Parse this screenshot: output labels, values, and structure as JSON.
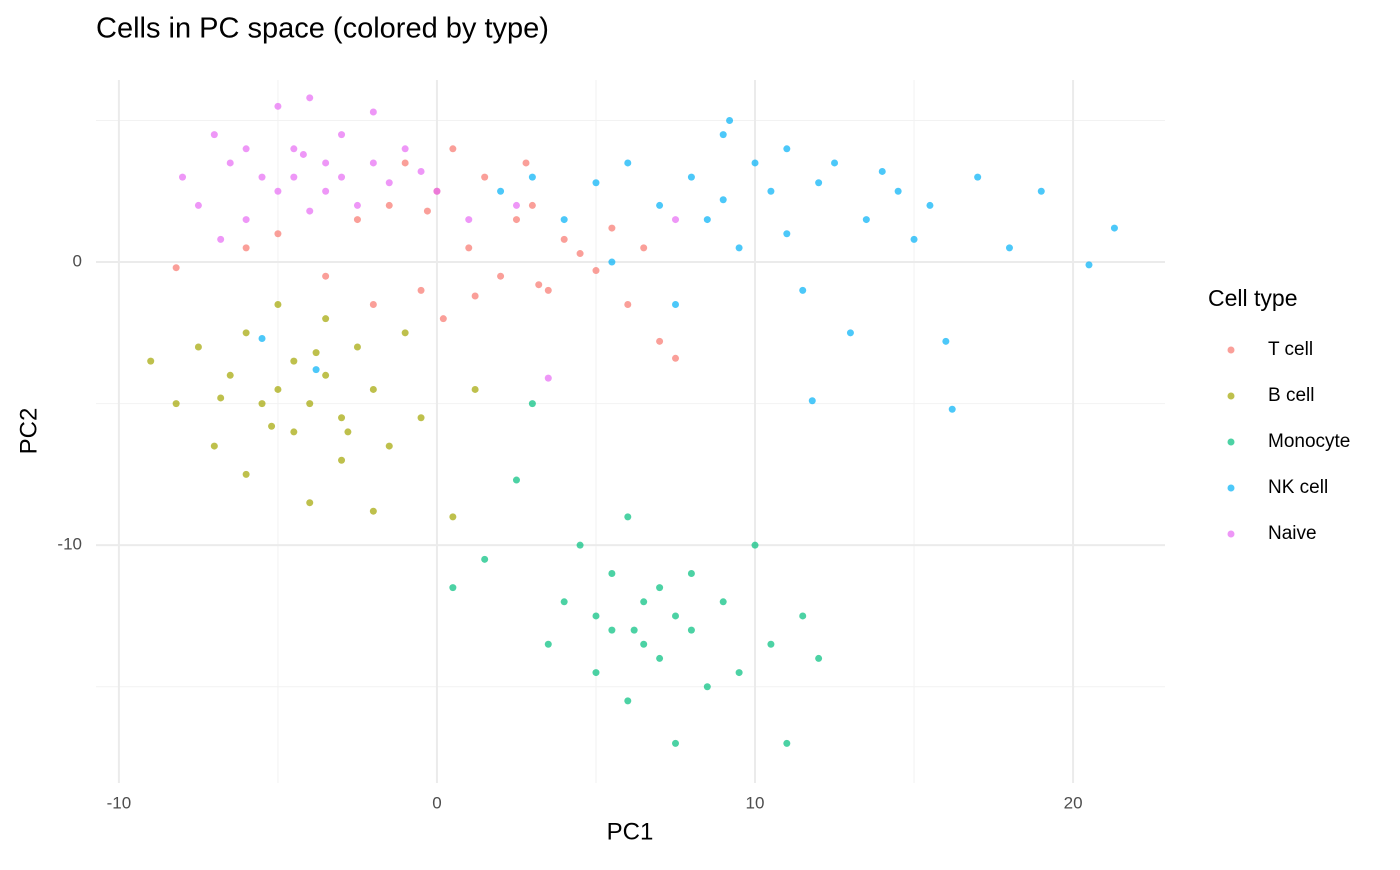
{
  "chart_data": {
    "type": "scatter",
    "title": "Cells in PC space (colored by type)",
    "x_label": "PC1",
    "y_label": "PC2",
    "legend_title": "Cell type",
    "legend_position": "right",
    "xlim": [
      -10.72,
      22.89
    ],
    "ylim": [
      -18.4,
      6.43
    ],
    "xticks": [
      -10,
      0,
      10,
      20
    ],
    "yticks": [
      -10,
      0
    ],
    "x_minor_ticks": [
      -5,
      5,
      15
    ],
    "y_minor_ticks": [
      -15,
      -5,
      5
    ],
    "grid": true,
    "series": [
      {
        "name": "T cell",
        "color": "#F8766D",
        "x": [
          -8.2,
          -6,
          -5,
          -3.5,
          -2.5,
          -1.5,
          -1,
          -0.5,
          0,
          0.5,
          1,
          1.5,
          2,
          2.5,
          3,
          3.5,
          4,
          5,
          5.5,
          6,
          7,
          7.5,
          0.2,
          -2,
          2.8,
          1.2,
          4.5,
          -0.3,
          3.2,
          6.5
        ],
        "y": [
          -0.2,
          0.5,
          1,
          -0.5,
          1.5,
          2,
          3.5,
          -1,
          2.5,
          4,
          0.5,
          3,
          -0.5,
          1.5,
          2,
          -1,
          0.8,
          -0.3,
          1.2,
          -1.5,
          -2.8,
          -3.4,
          -2,
          -1.5,
          3.5,
          -1.2,
          0.3,
          1.8,
          -0.8,
          0.5
        ]
      },
      {
        "name": "B cell",
        "color": "#A3A500",
        "x": [
          -9,
          -8.2,
          -7.5,
          -7,
          -6.5,
          -6,
          -6,
          -5.5,
          -5,
          -5,
          -4.5,
          -4.5,
          -4,
          -4,
          -3.5,
          -3.5,
          -3,
          -3,
          -2.5,
          -2,
          -2,
          -1.5,
          -1,
          -0.5,
          0.5,
          1.2,
          -5.2,
          -3.8,
          -6.8,
          -2.8
        ],
        "y": [
          -3.5,
          -5,
          -3,
          -6.5,
          -4,
          -2.5,
          -7.5,
          -5,
          -1.5,
          -4.5,
          -6,
          -3.5,
          -8.5,
          -5,
          -2,
          -4,
          -7,
          -5.5,
          -3,
          -8.8,
          -4.5,
          -6.5,
          -2.5,
          -5.5,
          -9,
          -4.5,
          -5.8,
          -3.2,
          -4.8,
          -6
        ]
      },
      {
        "name": "Monocyte",
        "color": "#00BF7D",
        "x": [
          0.5,
          1.5,
          2.5,
          3.5,
          4,
          4.5,
          5,
          5,
          5.5,
          5.5,
          6,
          6,
          6.5,
          6.5,
          7,
          7,
          7.5,
          7.5,
          8,
          8,
          8.5,
          9,
          9.5,
          10,
          10.5,
          11,
          11.5,
          12,
          3,
          6.2
        ],
        "y": [
          -11.5,
          -10.5,
          -7.7,
          -13.5,
          -12,
          -10,
          -14.5,
          -12.5,
          -11,
          -13,
          -9,
          -15.5,
          -12,
          -13.5,
          -11.5,
          -14,
          -12.5,
          -17,
          -13,
          -11,
          -15,
          -12,
          -14.5,
          -10,
          -13.5,
          -17,
          -12.5,
          -14,
          -5,
          -13
        ]
      },
      {
        "name": "NK cell",
        "color": "#00B0F6",
        "x": [
          2,
          3,
          4,
          5,
          5.5,
          6,
          7,
          7.5,
          8,
          8.5,
          9,
          9,
          9.5,
          10,
          10.5,
          11,
          11,
          11.5,
          12,
          12.5,
          13,
          13.5,
          14,
          14.5,
          15,
          15.5,
          16,
          17,
          18,
          19,
          20.5,
          21.3,
          11.8,
          16.2,
          -5.5,
          -3.8,
          9.2
        ],
        "y": [
          2.5,
          3,
          1.5,
          2.8,
          0,
          3.5,
          2,
          -1.5,
          3,
          1.5,
          4.5,
          2.2,
          0.5,
          3.5,
          2.5,
          4,
          1,
          -1,
          2.8,
          3.5,
          -2.5,
          1.5,
          3.2,
          2.5,
          0.8,
          2,
          -2.8,
          3,
          0.5,
          2.5,
          -0.1,
          1.2,
          -4.9,
          -5.2,
          -2.7,
          -3.8,
          5
        ]
      },
      {
        "name": "Naive",
        "color": "#E76BF3",
        "x": [
          -8,
          -7.5,
          -7,
          -6.5,
          -6,
          -6,
          -5.5,
          -5,
          -5,
          -4.5,
          -4.5,
          -4,
          -4,
          -3.5,
          -3.5,
          -3,
          -3,
          -2.5,
          -2,
          -2,
          -1.5,
          -1,
          -0.5,
          0,
          1,
          2.5,
          3.5,
          7.5,
          -6.8,
          -4.2
        ],
        "y": [
          3,
          2,
          4.5,
          3.5,
          1.5,
          4,
          3,
          5.5,
          2.5,
          4,
          3,
          5.8,
          1.8,
          3.5,
          2.5,
          4.5,
          3,
          2,
          5.3,
          3.5,
          2.8,
          4,
          3.2,
          2.5,
          1.5,
          2,
          -4.1,
          1.5,
          0.8,
          3.8
        ]
      }
    ]
  }
}
